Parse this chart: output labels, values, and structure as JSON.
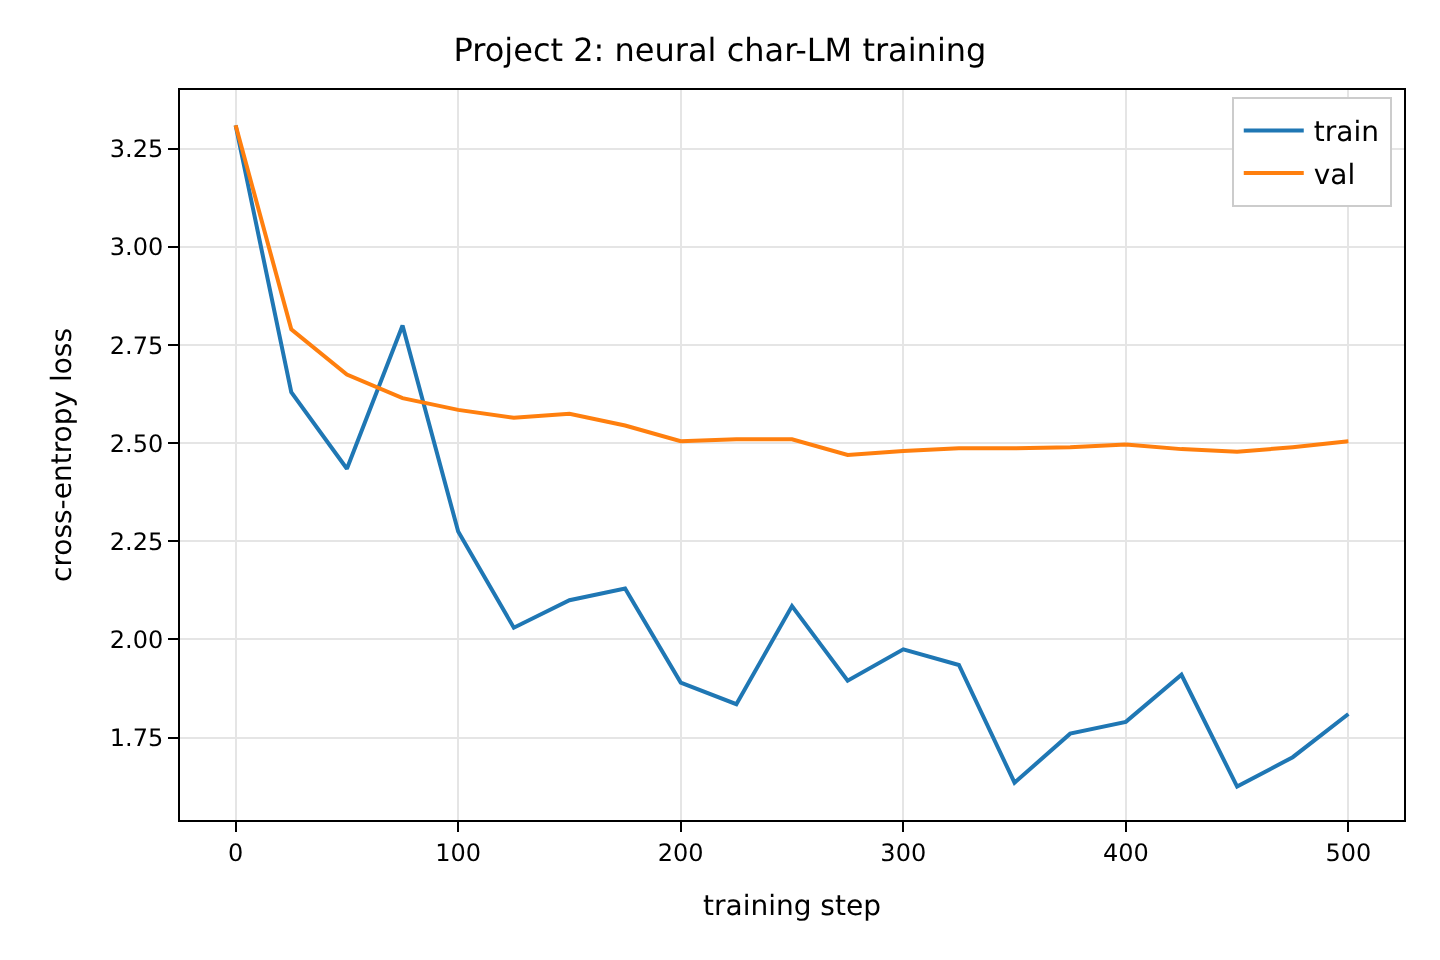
{
  "chart_data": {
    "type": "line",
    "title": "Project 2: neural char-LM training",
    "xlabel": "training step",
    "ylabel": "cross-entropy loss",
    "x": [
      0,
      25,
      50,
      75,
      100,
      125,
      150,
      175,
      200,
      225,
      250,
      275,
      300,
      325,
      350,
      375,
      400,
      425,
      450,
      475,
      500
    ],
    "series": [
      {
        "name": "train",
        "color": "#1f77b4",
        "values": [
          3.31,
          2.63,
          2.435,
          2.8,
          2.275,
          2.03,
          2.1,
          2.13,
          1.89,
          1.835,
          2.085,
          1.895,
          1.975,
          1.935,
          1.635,
          1.76,
          1.79,
          1.91,
          1.625,
          1.7,
          1.81
        ]
      },
      {
        "name": "val",
        "color": "#ff7f0e",
        "values": [
          3.31,
          2.79,
          2.675,
          2.615,
          2.585,
          2.565,
          2.575,
          2.545,
          2.505,
          2.51,
          2.51,
          2.47,
          2.48,
          2.487,
          2.487,
          2.49,
          2.497,
          2.485,
          2.478,
          2.49,
          2.505
        ]
      }
    ],
    "xlim": [
      -25,
      525
    ],
    "xticks": [
      0,
      100,
      200,
      300,
      400,
      500
    ],
    "ylim": [
      1.54,
      3.4
    ],
    "yticks": [
      {
        "value": 1.75,
        "label": "1.75"
      },
      {
        "value": 2.0,
        "label": "2.00"
      },
      {
        "value": 2.25,
        "label": "2.25"
      },
      {
        "value": 2.5,
        "label": "2.50"
      },
      {
        "value": 2.75,
        "label": "2.75"
      },
      {
        "value": 3.0,
        "label": "3.00"
      },
      {
        "value": 3.25,
        "label": "3.25"
      }
    ],
    "grid": true,
    "legend": "top right",
    "line_style": "solid",
    "marker": "none"
  }
}
